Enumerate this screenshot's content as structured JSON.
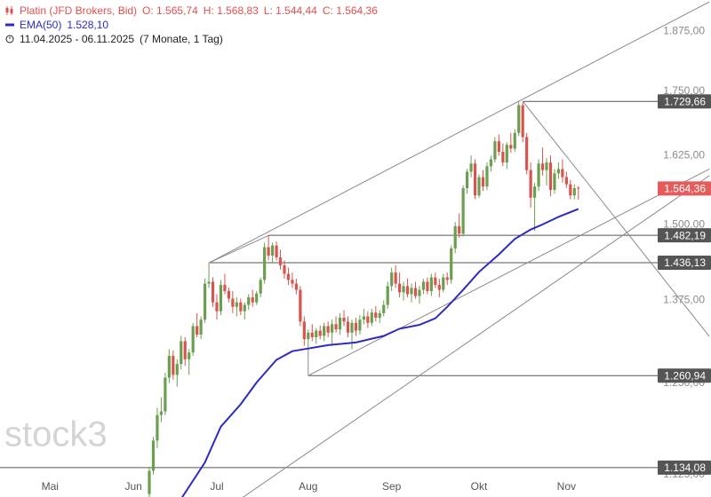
{
  "header": {
    "instrument": "Platin (JFD Brokers, Bid)",
    "ohlc": [
      "O: 1.565,74",
      "H: 1.568,83",
      "L: 1.544,44",
      "C: 1.564,36"
    ],
    "indicator": "EMA(50)",
    "indicator_value": "1.528,10",
    "range": "11.04.2025 - 06.11.2025",
    "duration": "(7 Monate, 1 Tag)"
  },
  "watermark": "stock3",
  "chart_data": {
    "type": "candlestick",
    "log_scale": true,
    "ylim": [
      1119,
      1944
    ],
    "yticks": [
      {
        "value": 1125,
        "label": "1.125,00"
      },
      {
        "value": 1250,
        "label": "1.250,00"
      },
      {
        "value": 1375,
        "label": "1.375,00"
      },
      {
        "value": 1500,
        "label": "1.500,00"
      },
      {
        "value": 1625,
        "label": "1.625,00"
      },
      {
        "value": 1750,
        "label": "1.750,00"
      },
      {
        "value": 1875,
        "label": "1.875,00"
      }
    ],
    "xticks": [
      {
        "value": -25,
        "label": "Mai"
      },
      {
        "value": -4,
        "label": "Jun"
      },
      {
        "value": 17,
        "label": "Jul"
      },
      {
        "value": 40,
        "label": "Aug"
      },
      {
        "value": 61,
        "label": "Sep"
      },
      {
        "value": 83,
        "label": "Okt"
      },
      {
        "value": 105,
        "label": "Nov"
      }
    ],
    "up_color": "#6a9f4f",
    "down_color": "#d9534f",
    "ohlc": [
      [
        1100,
        1135,
        1094,
        1130
      ],
      [
        1130,
        1175,
        1125,
        1170
      ],
      [
        1170,
        1215,
        1160,
        1205
      ],
      [
        1205,
        1230,
        1195,
        1210
      ],
      [
        1210,
        1265,
        1205,
        1258
      ],
      [
        1258,
        1300,
        1250,
        1290
      ],
      [
        1290,
        1298,
        1255,
        1262
      ],
      [
        1262,
        1285,
        1245,
        1278
      ],
      [
        1278,
        1320,
        1270,
        1312
      ],
      [
        1312,
        1318,
        1275,
        1285
      ],
      [
        1285,
        1300,
        1262,
        1295
      ],
      [
        1295,
        1340,
        1290,
        1335
      ],
      [
        1335,
        1355,
        1318,
        1322
      ],
      [
        1322,
        1350,
        1315,
        1345
      ],
      [
        1345,
        1410,
        1340,
        1402
      ],
      [
        1402,
        1436,
        1395,
        1405
      ],
      [
        1405,
        1412,
        1365,
        1372
      ],
      [
        1372,
        1385,
        1345,
        1358
      ],
      [
        1358,
        1408,
        1352,
        1400
      ],
      [
        1400,
        1418,
        1385,
        1390
      ],
      [
        1390,
        1396,
        1372,
        1378
      ],
      [
        1378,
        1390,
        1355,
        1365
      ],
      [
        1365,
        1380,
        1350,
        1372
      ],
      [
        1372,
        1378,
        1352,
        1358
      ],
      [
        1358,
        1372,
        1345,
        1368
      ],
      [
        1368,
        1385,
        1360,
        1380
      ],
      [
        1380,
        1392,
        1365,
        1372
      ],
      [
        1372,
        1390,
        1368,
        1386
      ],
      [
        1386,
        1412,
        1380,
        1408
      ],
      [
        1408,
        1470,
        1402,
        1462
      ],
      [
        1462,
        1482,
        1440,
        1448
      ],
      [
        1448,
        1470,
        1435,
        1465
      ],
      [
        1465,
        1472,
        1440,
        1445
      ],
      [
        1445,
        1458,
        1425,
        1432
      ],
      [
        1432,
        1440,
        1410,
        1418
      ],
      [
        1418,
        1428,
        1400,
        1408
      ],
      [
        1408,
        1420,
        1395,
        1402
      ],
      [
        1402,
        1410,
        1385,
        1392
      ],
      [
        1392,
        1398,
        1335,
        1342
      ],
      [
        1342,
        1350,
        1305,
        1315
      ],
      [
        1315,
        1330,
        1300,
        1325
      ],
      [
        1325,
        1338,
        1312,
        1318
      ],
      [
        1318,
        1332,
        1308,
        1328
      ],
      [
        1328,
        1336,
        1315,
        1320
      ],
      [
        1320,
        1340,
        1312,
        1335
      ],
      [
        1335,
        1342,
        1318,
        1325
      ],
      [
        1325,
        1345,
        1305,
        1338
      ],
      [
        1338,
        1350,
        1325,
        1330
      ],
      [
        1330,
        1355,
        1322,
        1348
      ],
      [
        1348,
        1360,
        1335,
        1342
      ],
      [
        1342,
        1350,
        1318,
        1325
      ],
      [
        1325,
        1345,
        1300,
        1340
      ],
      [
        1340,
        1348,
        1320,
        1328
      ],
      [
        1328,
        1352,
        1322,
        1345
      ],
      [
        1345,
        1362,
        1338,
        1350
      ],
      [
        1350,
        1358,
        1332,
        1340
      ],
      [
        1340,
        1362,
        1335,
        1356
      ],
      [
        1356,
        1366,
        1342,
        1348
      ],
      [
        1348,
        1360,
        1340,
        1355
      ],
      [
        1355,
        1375,
        1350,
        1368
      ],
      [
        1368,
        1405,
        1362,
        1398
      ],
      [
        1398,
        1428,
        1390,
        1420
      ],
      [
        1420,
        1432,
        1395,
        1402
      ],
      [
        1402,
        1420,
        1380,
        1388
      ],
      [
        1388,
        1405,
        1375,
        1398
      ],
      [
        1398,
        1410,
        1380,
        1385
      ],
      [
        1385,
        1402,
        1372,
        1395
      ],
      [
        1395,
        1405,
        1378,
        1382
      ],
      [
        1382,
        1398,
        1370,
        1392
      ],
      [
        1392,
        1410,
        1385,
        1405
      ],
      [
        1405,
        1412,
        1385,
        1390
      ],
      [
        1390,
        1418,
        1382,
        1412
      ],
      [
        1412,
        1420,
        1395,
        1400
      ],
      [
        1400,
        1410,
        1380,
        1392
      ],
      [
        1392,
        1418,
        1388,
        1412
      ],
      [
        1412,
        1420,
        1400,
        1408
      ],
      [
        1408,
        1465,
        1402,
        1460
      ],
      [
        1460,
        1505,
        1452,
        1498
      ],
      [
        1498,
        1520,
        1478,
        1485
      ],
      [
        1485,
        1570,
        1480,
        1565
      ],
      [
        1565,
        1600,
        1555,
        1595
      ],
      [
        1595,
        1625,
        1585,
        1610
      ],
      [
        1610,
        1618,
        1545,
        1552
      ],
      [
        1552,
        1590,
        1548,
        1585
      ],
      [
        1585,
        1598,
        1560,
        1568
      ],
      [
        1568,
        1612,
        1562,
        1605
      ],
      [
        1605,
        1625,
        1595,
        1618
      ],
      [
        1618,
        1660,
        1612,
        1652
      ],
      [
        1652,
        1665,
        1625,
        1632
      ],
      [
        1632,
        1648,
        1605,
        1612
      ],
      [
        1612,
        1650,
        1600,
        1645
      ],
      [
        1645,
        1668,
        1630,
        1638
      ],
      [
        1638,
        1675,
        1632,
        1668
      ],
      [
        1668,
        1729,
        1662,
        1722
      ],
      [
        1722,
        1728,
        1650,
        1660
      ],
      [
        1660,
        1668,
        1590,
        1598
      ],
      [
        1598,
        1612,
        1530,
        1548
      ],
      [
        1548,
        1575,
        1490,
        1568
      ],
      [
        1568,
        1618,
        1560,
        1610
      ],
      [
        1610,
        1640,
        1588,
        1598
      ],
      [
        1598,
        1620,
        1570,
        1612
      ],
      [
        1612,
        1625,
        1550,
        1562
      ],
      [
        1562,
        1600,
        1555,
        1592
      ],
      [
        1592,
        1612,
        1582,
        1600
      ],
      [
        1600,
        1618,
        1575,
        1585
      ],
      [
        1585,
        1595,
        1565,
        1572
      ],
      [
        1572,
        1580,
        1545,
        1552
      ],
      [
        1552,
        1572,
        1545,
        1565
      ],
      [
        1565.74,
        1568.83,
        1544.44,
        1564.36
      ]
    ],
    "ema": {
      "color": "#2b2bc4",
      "x": [
        8,
        14,
        18,
        23,
        27,
        32,
        36,
        40,
        45,
        52,
        59,
        63,
        68,
        72,
        75,
        79,
        83,
        88,
        92,
        96,
        99,
        103,
        108
      ],
      "values": [
        1094,
        1141,
        1189,
        1220,
        1251,
        1284,
        1297,
        1301,
        1306,
        1310,
        1320,
        1331,
        1337,
        1347,
        1365,
        1392,
        1421,
        1450,
        1476,
        1492,
        1501,
        1514,
        1528.1
      ]
    },
    "line_color": "#8a8a8a",
    "lines": [
      {
        "from": [
          15,
          1436
        ],
        "to": [
          141,
          1940
        ]
      },
      {
        "from": [
          94,
          1730
        ],
        "to": [
          141,
          1319
        ]
      },
      {
        "from": [
          40,
          1261
        ],
        "to": [
          141,
          1600
        ]
      },
      {
        "from": [
          23,
          1094
        ],
        "to": [
          141,
          1588
        ]
      },
      {
        "from": [
          15,
          1436
        ],
        "to": [
          30,
          1482
        ]
      },
      {
        "from": [
          40,
          1300
        ],
        "to": [
          40,
          1261
        ]
      }
    ],
    "level_color": "#555555",
    "levels": [
      {
        "value": 1729.66,
        "label": "1.729,66",
        "from": 94
      },
      {
        "value": 1482.19,
        "label": "1.482,19",
        "from": 30
      },
      {
        "value": 1436.13,
        "label": "1.436,13",
        "from": 15
      },
      {
        "value": 1260.94,
        "label": "1.260,94",
        "from": 40
      },
      {
        "value": 1134.08,
        "label": "1.134,08",
        "from": -38
      }
    ],
    "last_price": {
      "value": 1564.36,
      "label": "1.564,36",
      "color": "#e35d5d"
    }
  }
}
